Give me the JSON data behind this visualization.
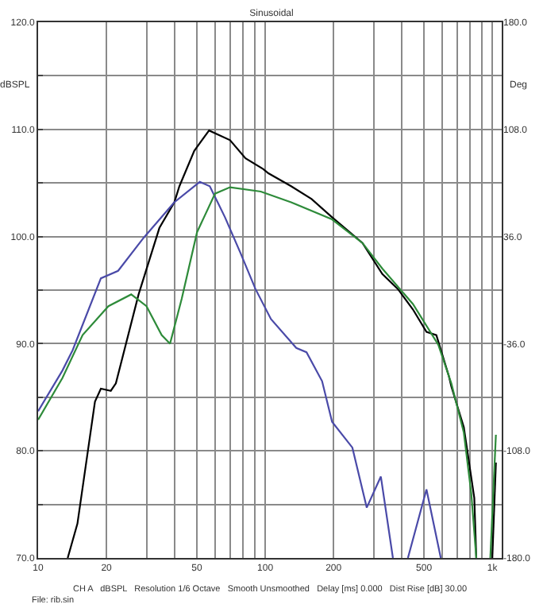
{
  "chart_data": {
    "type": "line",
    "title": "Sinusoidal",
    "ylabel": "dBSPL",
    "y2label": "Deg",
    "annotations": [
      "CH A   dBSPL   Resolution 1/6 Octave   Smooth Unsmoothed   Delay [ms] 0.000   Dist Rise [dB] 30.00",
      "File: rib.sin"
    ],
    "log": "x",
    "grid": true,
    "marker": "none",
    "line_style": "solid",
    "xlim": [
      10,
      1100
    ],
    "xticks": [
      10,
      20,
      {
        "value": 30,
        "label": null
      },
      {
        "value": 40,
        "label": null
      },
      50,
      {
        "value": 60,
        "label": null
      },
      {
        "value": 70,
        "label": null
      },
      {
        "value": 80,
        "label": null
      },
      {
        "value": 90,
        "label": null
      },
      100,
      200,
      {
        "value": 300,
        "label": null
      },
      {
        "value": 400,
        "label": null
      },
      500,
      {
        "value": 600,
        "label": null
      },
      {
        "value": 700,
        "label": null
      },
      {
        "value": 800,
        "label": null
      },
      {
        "value": 900,
        "label": null
      },
      {
        "value": 1000,
        "label": "1k"
      }
    ],
    "ylim": [
      70,
      120
    ],
    "yticks": [
      {
        "value": 70,
        "label": "70.0"
      },
      {
        "value": 75,
        "label": null
      },
      {
        "value": 80,
        "label": "80.0"
      },
      {
        "value": 85,
        "label": null
      },
      {
        "value": 90,
        "label": "90.0"
      },
      {
        "value": 95,
        "label": null
      },
      {
        "value": 100,
        "label": "100.0"
      },
      {
        "value": 105,
        "label": null
      },
      {
        "value": 110,
        "label": "110.0"
      },
      {
        "value": 115,
        "label": null
      },
      {
        "value": 120,
        "label": "120.0"
      }
    ],
    "y2lim": [
      -180,
      180
    ],
    "y2ticks": [
      {
        "value": -180,
        "label": "-180.0"
      },
      {
        "value": -108,
        "label": "-108.0"
      },
      {
        "value": -36,
        "label": "-36.0"
      },
      {
        "value": 36,
        "label": "36.0"
      },
      {
        "value": 108,
        "label": "108.0"
      },
      {
        "value": 180,
        "label": "180.0"
      }
    ],
    "series": [
      {
        "color": "#000000",
        "x": [
          13.5,
          14.9,
          17.8,
          18.9,
          20.9,
          22,
          27.7,
          34.2,
          39.8,
          41.9,
          48.7,
          56.6,
          70,
          81.9,
          97.9,
          103.3,
          130,
          160,
          197,
          268,
          328,
          384,
          447,
          513,
          567,
          643,
          660,
          749,
          833,
          850,
          900,
          1000,
          1037
        ],
        "values": [
          70,
          73.2,
          84.6,
          85.8,
          85.6,
          86.3,
          94.6,
          100.8,
          103.2,
          104.7,
          108,
          109.9,
          109,
          107.3,
          106.3,
          105.9,
          104.7,
          103.5,
          101.8,
          99.4,
          96.5,
          95.1,
          93.2,
          91.1,
          90.8,
          87,
          86,
          82.2,
          75.6,
          70,
          null,
          70,
          78.9
        ]
      },
      {
        "color": "#4a4aa8",
        "x": [
          10,
          12.8,
          14.2,
          18.9,
          22.5,
          29.2,
          39.8,
          51.5,
          57,
          66.5,
          77.7,
          90.6,
          106,
          137,
          152,
          178,
          197,
          242,
          280,
          323,
          365,
          400,
          425,
          513,
          593
        ],
        "values": [
          83.7,
          87.5,
          89.4,
          96.1,
          96.8,
          99.9,
          103.2,
          105.1,
          104.7,
          101.8,
          98.5,
          95.1,
          92.3,
          89.6,
          89.2,
          86.5,
          82.7,
          80.3,
          74.7,
          77.6,
          70,
          null,
          70,
          76.4,
          70
        ]
      },
      {
        "color": "#2e8b3a",
        "x": [
          10,
          12.8,
          15.7,
          20.4,
          25.7,
          30,
          35,
          38.1,
          42.9,
          50.1,
          60.1,
          70,
          95.6,
          130,
          197,
          268,
          328,
          447,
          578,
          660,
          749,
          808,
          850,
          900,
          980,
          1037
        ],
        "values": [
          82.9,
          86.8,
          90.8,
          93.5,
          94.6,
          93.5,
          90.8,
          90,
          94.2,
          100.4,
          104,
          104.6,
          104.2,
          103.2,
          101.6,
          99.4,
          97,
          93.7,
          89.9,
          86.3,
          81.7,
          76,
          70,
          null,
          70,
          81.5
        ]
      }
    ]
  }
}
